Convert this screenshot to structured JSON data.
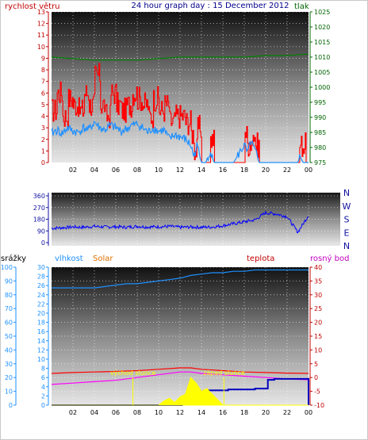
{
  "chart_data": [
    {
      "type": "line",
      "title": "24 hour graph day : 15 December 2012",
      "left_label": "rychlost větru",
      "right_label": "tlak",
      "x_ticks": [
        "02",
        "04",
        "06",
        "08",
        "10",
        "12",
        "14",
        "16",
        "18",
        "20",
        "22",
        "00"
      ],
      "ylim_left": [
        0,
        13
      ],
      "ylim_right": [
        975,
        1025
      ],
      "y_ticks_left": [
        0,
        1,
        2,
        3,
        4,
        5,
        6,
        7,
        8,
        9,
        10,
        11,
        12,
        13
      ],
      "y_ticks_right": [
        975,
        980,
        985,
        990,
        995,
        1000,
        1005,
        1010,
        1015,
        1020,
        1025
      ],
      "colors": {
        "gust": "#ff0000",
        "wind": "#1e90ff",
        "pressure": "#008000",
        "left_axis": "#c00000",
        "right_axis": "#006400"
      },
      "series": [
        {
          "key": "pressure",
          "axis": "right",
          "x": [
            0,
            2,
            4,
            6,
            8,
            10,
            12,
            14,
            16,
            18,
            20,
            22,
            24
          ],
          "values": [
            1010,
            1009.5,
            1009,
            1009,
            1009,
            1009.5,
            1010,
            1010,
            1010,
            1010,
            1010.5,
            1010.5,
            1011
          ]
        },
        {
          "key": "gust",
          "axis": "left",
          "step": true,
          "x": [
            0,
            0.5,
            1,
            1.5,
            2,
            2.5,
            3,
            3.5,
            4,
            4.5,
            5,
            5.5,
            6,
            6.5,
            7,
            7.5,
            8,
            8.5,
            9,
            9.5,
            10,
            10.5,
            11,
            11.5,
            12,
            12.5,
            13,
            13.3,
            13.6,
            14,
            14.4,
            14.8,
            15.2,
            15.6,
            16,
            16.5,
            17,
            17.5,
            18,
            18.3,
            18.6,
            19,
            19.4,
            19.8,
            20.5,
            21,
            21.5,
            22,
            22.5,
            22.8,
            23.1,
            23.4,
            23.7,
            24
          ],
          "values": [
            4.5,
            6,
            4,
            5.5,
            5,
            4.5,
            6,
            5,
            7.5,
            5,
            4,
            6,
            5,
            4.5,
            5,
            6,
            5.5,
            5,
            4,
            5.5,
            4.5,
            5,
            3.5,
            4,
            4,
            3.5,
            2.5,
            1,
            3,
            0,
            0,
            2,
            0,
            0,
            0,
            0,
            0,
            0,
            2.5,
            1,
            2.5,
            1.5,
            0,
            0,
            0,
            0,
            0,
            0,
            0,
            0,
            1.5,
            1.5,
            0,
            0
          ]
        },
        {
          "key": "wind",
          "axis": "left",
          "x": [
            0,
            0.5,
            1,
            1.5,
            2,
            2.5,
            3,
            3.5,
            4,
            4.5,
            5,
            5.5,
            6,
            6.5,
            7,
            7.5,
            8,
            8.5,
            9,
            9.5,
            10,
            10.5,
            11,
            11.5,
            12,
            12.5,
            13,
            13.3,
            13.6,
            14,
            14.4,
            14.8,
            15.2,
            15.6,
            16,
            17,
            18,
            18.3,
            18.6,
            19,
            19.4,
            19.8,
            21,
            22,
            23,
            23.2,
            23.5,
            24
          ],
          "values": [
            2.5,
            2.8,
            2.5,
            3,
            2.7,
            2.6,
            3,
            2.8,
            3.5,
            3,
            2.8,
            3.2,
            3,
            2.7,
            2.9,
            3.2,
            3.3,
            3,
            2.6,
            3,
            2.7,
            2.8,
            2,
            2.4,
            2.2,
            2,
            1.5,
            0.5,
            1.5,
            0,
            0,
            1,
            0,
            0,
            0,
            0,
            1.5,
            0.8,
            1.8,
            1,
            0,
            0,
            0,
            0,
            0,
            0.5,
            0,
            0
          ]
        }
      ]
    },
    {
      "type": "line",
      "x_ticks": [
        "02",
        "04",
        "06",
        "08",
        "10",
        "12",
        "14",
        "16",
        "18",
        "20",
        "22",
        "00"
      ],
      "ylim": [
        0,
        360
      ],
      "y_ticks": [
        0,
        90,
        180,
        270,
        360
      ],
      "direction_labels": [
        "N",
        "W",
        "S",
        "E",
        "N"
      ],
      "colors": {
        "direction": "#0000ff",
        "axis": "#1010a0"
      },
      "series": [
        {
          "key": "direction",
          "x": [
            0,
            1,
            2,
            3,
            4,
            5,
            6,
            7,
            8,
            9,
            10,
            11,
            12,
            13,
            14,
            15,
            16,
            17,
            18,
            19,
            20,
            21,
            22,
            23,
            24
          ],
          "values": [
            110,
            115,
            120,
            118,
            125,
            120,
            122,
            118,
            125,
            120,
            122,
            125,
            118,
            120,
            118,
            120,
            130,
            145,
            160,
            175,
            230,
            220,
            200,
            80,
            210
          ]
        }
      ]
    },
    {
      "type": "area",
      "left_label": "srážky",
      "humidity_label": "vlhkost",
      "solar_label": "Solar",
      "temp_label": "teplota",
      "dew_label": "rosný bod",
      "sunrise_label": "východ slunce",
      "sunset_label": "západ slunce",
      "x_ticks": [
        "02",
        "04",
        "06",
        "08",
        "10",
        "12",
        "14",
        "16",
        "18",
        "20",
        "22",
        "00"
      ],
      "ylim_humidity": [
        0,
        100
      ],
      "y_ticks_humidity": [
        0,
        10,
        20,
        30,
        40,
        50,
        60,
        70,
        80,
        90,
        100
      ],
      "ylim_rain": [
        0,
        30
      ],
      "y_ticks_rain": [
        0,
        2,
        4,
        6,
        8,
        10,
        12,
        14,
        16,
        18,
        20,
        22,
        24,
        26,
        28,
        30
      ],
      "ylim_temp": [
        -10,
        40
      ],
      "y_ticks_temp": [
        -10,
        -5,
        0,
        5,
        10,
        15,
        20,
        25,
        30,
        35,
        40
      ],
      "colors": {
        "humidity": "#1e90ff",
        "temp": "#ff0000",
        "dew": "#ff00ff",
        "rain": "#0000c0",
        "solar": "#ffff00",
        "rain_axis": "#1e90ff",
        "hum_axis": "#1e90ff",
        "temp_axis": "#c00000",
        "left_label": "#000000",
        "solar_label": "#e07000",
        "dew_label": "#c000c0"
      },
      "series": [
        {
          "key": "humidity",
          "x": [
            0,
            1,
            2,
            3,
            4,
            5,
            6,
            7,
            8,
            9,
            10,
            11,
            12,
            13,
            14,
            15,
            16,
            17,
            18,
            19,
            20,
            21,
            22,
            23,
            24
          ],
          "values": [
            85,
            85,
            85,
            85,
            85,
            86,
            87,
            88,
            88,
            89,
            90,
            91,
            92,
            94,
            95,
            96,
            96,
            97,
            97,
            98,
            98,
            98,
            98,
            98,
            98
          ]
        },
        {
          "key": "temp",
          "x": [
            0,
            2,
            4,
            6,
            8,
            10,
            12,
            13,
            14,
            16,
            18,
            20,
            22,
            24
          ],
          "values": [
            1.5,
            1.8,
            2,
            2.2,
            2.5,
            3,
            3.5,
            3.5,
            3,
            2.5,
            2,
            1.8,
            1.6,
            1.5
          ]
        },
        {
          "key": "dew",
          "x": [
            0,
            2,
            4,
            6,
            8,
            10,
            12,
            13,
            14,
            16,
            18,
            20,
            22,
            24
          ],
          "values": [
            -2.5,
            -2,
            -1.5,
            -1,
            0,
            1,
            2,
            2,
            1.5,
            1,
            0.5,
            0,
            -0.5,
            -0.8
          ]
        },
        {
          "key": "rain",
          "step": true,
          "x": [
            0,
            11,
            12.2,
            12.5,
            13.3,
            13.7,
            14.5,
            16.5,
            18,
            19,
            20.2,
            20.8,
            21.5,
            22.5,
            23.5,
            24
          ],
          "values": [
            0,
            0,
            0.5,
            0.7,
            2.5,
            3,
            3.2,
            3.4,
            3.4,
            3.6,
            5.5,
            5.7,
            5.7,
            5.7,
            5.7,
            0
          ]
        },
        {
          "key": "solar",
          "x": [
            0,
            10,
            10.5,
            11,
            11.5,
            12,
            12.5,
            13,
            13.5,
            14,
            14.5,
            15,
            15.5,
            16,
            24
          ],
          "values": [
            0,
            0,
            3,
            5,
            2,
            6,
            8,
            20,
            16,
            10,
            12,
            8,
            4,
            0,
            0
          ]
        }
      ],
      "events": [
        {
          "key": "sunrise",
          "x": 7.6
        },
        {
          "key": "sunset",
          "x": 16.1
        }
      ]
    }
  ]
}
